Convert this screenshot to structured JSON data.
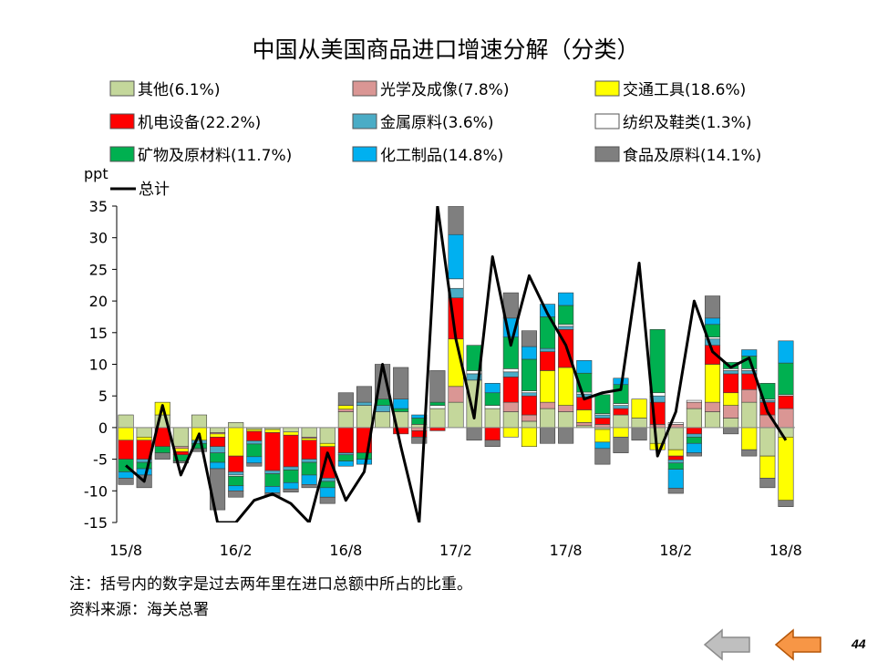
{
  "page": {
    "note": "注：括号内的数字是过去两年里在进口总额中所占的比重。",
    "source": "资料来源：海关总署",
    "page_number": "44"
  },
  "nav": {
    "prev_icon": "gray-left-arrow-icon",
    "next_icon": "orange-left-arrow-icon"
  },
  "chart_data": {
    "type": "bar",
    "stacked": true,
    "title": "中国从美国商品进口增速分解（分类）",
    "ylabel": "ppt",
    "ylim": [
      -15,
      35
    ],
    "yticks": [
      35,
      30,
      25,
      20,
      15,
      10,
      5,
      0,
      -5,
      -10,
      -15
    ],
    "x_tick_labels": [
      "15/8",
      "16/2",
      "16/8",
      "17/2",
      "17/8",
      "18/2",
      "18/8"
    ],
    "legend_position": "top",
    "categories": [
      "15/8",
      "15/9",
      "15/10",
      "15/11",
      "15/12",
      "16/1",
      "16/2",
      "16/3",
      "16/4",
      "16/5",
      "16/6",
      "16/7",
      "16/8",
      "16/9",
      "16/10",
      "16/11",
      "16/12",
      "17/1",
      "17/2",
      "17/3",
      "17/4",
      "17/5",
      "17/6",
      "17/7",
      "17/8",
      "17/9",
      "17/10",
      "17/11",
      "17/12",
      "18/1",
      "18/2",
      "18/3",
      "18/4",
      "18/5",
      "18/6",
      "18/7",
      "18/8"
    ],
    "series": [
      {
        "name": "其他(6.1%)",
        "color": "#c4d79b",
        "values": [
          2,
          -1.5,
          2,
          -3,
          2,
          -0.8,
          0.8,
          -0.3,
          -0.3,
          -0.7,
          -1.5,
          -2.5,
          2.5,
          3.5,
          2.5,
          2.5,
          0.5,
          3,
          4,
          7.5,
          3,
          2.5,
          1,
          3,
          2.5,
          0.3,
          -0.3,
          2,
          1.5,
          -2.5,
          -3.5,
          3,
          2.5,
          1.5,
          4,
          -4.5,
          -1.5
        ]
      },
      {
        "name": "光学及成像(7.8%)",
        "color": "#da9694",
        "values": [
          0,
          0,
          0,
          -0.3,
          0,
          -0.2,
          0,
          0,
          0,
          0,
          -0.2,
          0,
          0.4,
          0,
          0,
          0,
          -0.5,
          0,
          2.5,
          0,
          0,
          1.5,
          1,
          1,
          1,
          0.5,
          0.5,
          0,
          0,
          0.5,
          0.5,
          1,
          1.5,
          2,
          2,
          2,
          3
        ]
      },
      {
        "name": "交通工具(18.6%)",
        "color": "#ffff00",
        "values": [
          -2,
          -0.5,
          2,
          -0.5,
          -2,
          -0.5,
          -4.5,
          -0.3,
          -0.5,
          -0.5,
          -0.3,
          -0.5,
          0.6,
          0,
          0,
          0,
          0,
          0,
          7.5,
          0,
          0,
          -1.5,
          -3,
          5,
          6,
          2,
          -2,
          -1.5,
          3,
          -1,
          -1,
          0,
          6,
          2,
          -3.5,
          -3.5,
          -10
        ]
      },
      {
        "name": "机电设备(22.2%)",
        "color": "#ff0000",
        "values": [
          -3,
          -3,
          -3,
          -0.5,
          0,
          -1.5,
          -2.5,
          -1.5,
          -6,
          -5,
          -3,
          -5,
          -4,
          -4,
          0,
          -1,
          -1,
          -0.5,
          6.5,
          0,
          -2,
          4,
          3,
          3,
          6,
          2,
          1,
          1,
          0,
          3.5,
          -0.6,
          -1,
          3,
          3,
          2.5,
          2,
          2
        ]
      },
      {
        "name": "金属原料(3.6%)",
        "color": "#4aacc6",
        "values": [
          0,
          -0.5,
          0,
          0,
          -0.5,
          -1,
          -0.5,
          -0.5,
          -0.5,
          -0.5,
          -0.5,
          -0.5,
          -0.3,
          0.5,
          1,
          0,
          0,
          0,
          1.5,
          1,
          0,
          0.8,
          0.5,
          0.5,
          0.5,
          0.5,
          0.5,
          0.5,
          0,
          1,
          -0.5,
          -0.5,
          1,
          0.5,
          0.5,
          0.3,
          0
        ]
      },
      {
        "name": "纺织及鞋类(1.3%)",
        "color": "#ffffff",
        "values": [
          0,
          0,
          0,
          0,
          0,
          0,
          -0.2,
          0,
          0,
          0,
          0,
          0,
          0,
          0,
          0,
          0,
          0,
          0.5,
          1.5,
          0.5,
          0.5,
          0.5,
          0.3,
          0,
          0.3,
          0.3,
          0.2,
          0.3,
          0,
          0.5,
          0.3,
          0.3,
          0.3,
          0.3,
          0.3,
          0.2,
          0.2
        ]
      },
      {
        "name": "矿物及原材料(11.7%)",
        "color": "#00b050",
        "values": [
          -2,
          -1,
          -1,
          -1,
          -0.8,
          -1.5,
          -1.5,
          -2,
          -2,
          -2,
          -2,
          -1,
          -1,
          -1,
          1,
          0.5,
          1,
          0.5,
          0,
          4,
          2,
          5,
          5,
          5,
          3,
          3,
          3,
          3,
          0,
          10,
          -1,
          -1,
          2,
          1,
          2,
          2.5,
          5
        ]
      },
      {
        "name": "化工制品(14.8%)",
        "color": "#00b0f0",
        "values": [
          -1,
          -1,
          0,
          0,
          0,
          -1,
          -0.8,
          -1,
          -1,
          -1,
          -1.5,
          -1.5,
          -0.8,
          -0.8,
          0,
          1.5,
          0.5,
          0,
          7,
          0,
          1.5,
          3,
          2,
          2,
          2,
          2,
          -1,
          1,
          0,
          0,
          -3,
          -1.5,
          1,
          0,
          1,
          0,
          3.5
        ]
      },
      {
        "name": "食品及原料(14.1%)",
        "color": "#7f7f7f",
        "values": [
          -1,
          -2,
          -1,
          -0.3,
          -0.5,
          -6.5,
          -1,
          -0.5,
          -0.5,
          -0.5,
          -0.5,
          -1,
          2,
          2.5,
          5.5,
          5,
          -1,
          5,
          6,
          -2,
          -1,
          4,
          2.5,
          -2.5,
          -2.5,
          0,
          -2.5,
          -2.5,
          -2,
          0,
          -0.8,
          -0.5,
          3.5,
          -1,
          -1,
          -1.5,
          -1
        ]
      }
    ],
    "total": {
      "name": "总计",
      "color": "#000000",
      "values": [
        -6,
        -8.5,
        3.5,
        -7.5,
        -1,
        -16,
        -16,
        -11.5,
        -10.5,
        -12,
        -16,
        -4,
        -11.5,
        -7,
        10,
        -3,
        -16,
        35,
        14,
        1.5,
        27,
        13,
        24,
        18,
        13,
        4.5,
        5.5,
        6,
        26,
        -4.5,
        2.5,
        20,
        12,
        9.5,
        11,
        2.5,
        -2
      ]
    }
  }
}
